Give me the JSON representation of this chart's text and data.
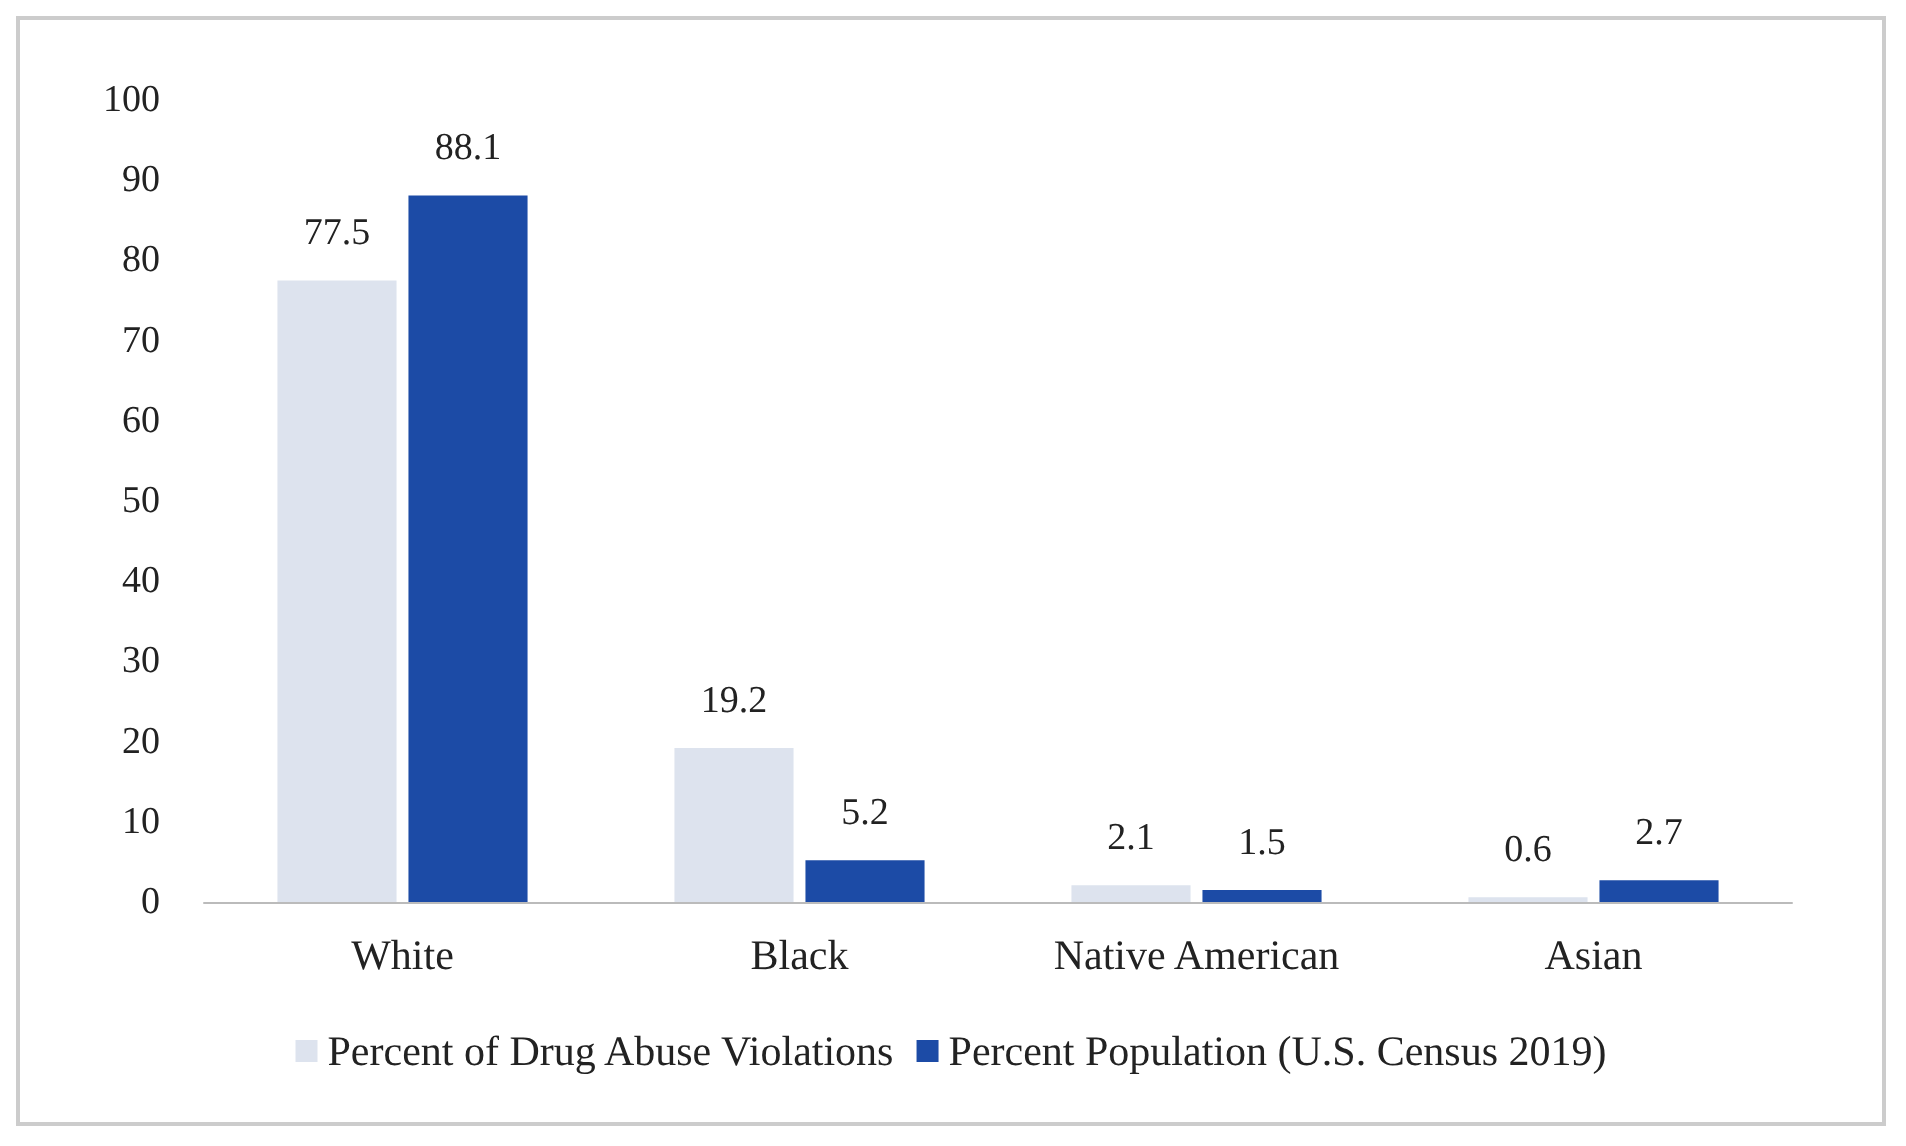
{
  "chart_data": {
    "type": "bar",
    "categories": [
      "White",
      "Black",
      "Native American",
      "Asian"
    ],
    "series": [
      {
        "name": "Percent of Drug Abuse Violations",
        "color": "#dde3ee",
        "values": [
          77.5,
          19.2,
          2.1,
          0.6
        ]
      },
      {
        "name": "Percent Population (U.S. Census 2019)",
        "color": "#1c4ba6",
        "values": [
          88.1,
          5.2,
          1.5,
          2.7
        ]
      }
    ],
    "ylim": [
      0,
      100
    ],
    "yticks": [
      0,
      10,
      20,
      30,
      40,
      50,
      60,
      70,
      80,
      90,
      100
    ],
    "grid": false,
    "legend": "bottom",
    "data_labels": true
  }
}
